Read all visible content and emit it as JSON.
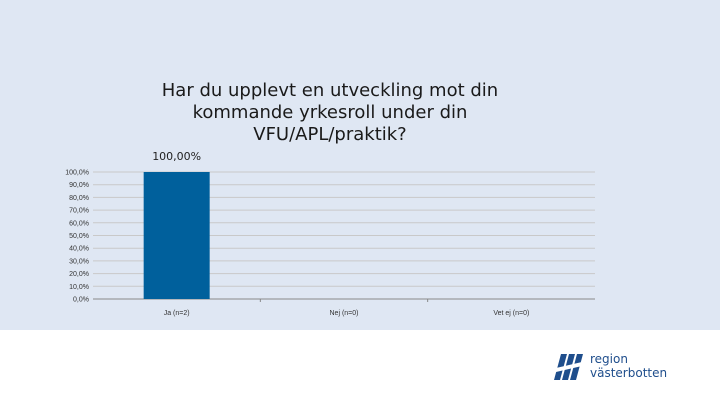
{
  "chart_data": {
    "type": "bar",
    "title": "Har du upplevt en utveckling mot din\nkommande yrkesroll under din\nVFU/APL/praktik?",
    "categories": [
      "Ja (n=2)",
      "Nej (n=0)",
      "Vet ej (n=0)"
    ],
    "values": [
      100.0,
      0.0,
      0.0
    ],
    "data_labels": [
      "100,00%",
      "",
      ""
    ],
    "yticks": [
      "0,0%",
      "10,0%",
      "20,0%",
      "30,0%",
      "40,0%",
      "50,0%",
      "60,0%",
      "70,0%",
      "80,0%",
      "90,0%",
      "100,0%"
    ],
    "ylim": [
      0,
      100
    ],
    "grid": true,
    "colors": {
      "bar": "#00609c",
      "grid": "#c9c9c9",
      "axis": "#888888"
    }
  },
  "logo": {
    "line1": "region",
    "line2": "västerbotten",
    "color": "#1f4e8c"
  }
}
